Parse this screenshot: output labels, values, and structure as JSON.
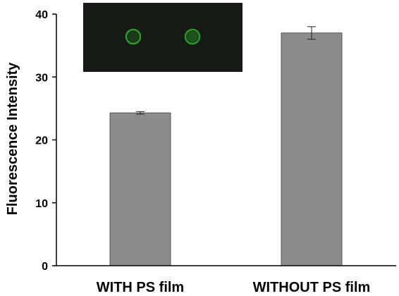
{
  "chart_data": {
    "type": "bar",
    "categories": [
      "WITH PS film",
      "WITHOUT PS film"
    ],
    "values": [
      24.3,
      37.0
    ],
    "errors": [
      0.2,
      1.0
    ],
    "title": "",
    "xlabel": "",
    "ylabel": "Fluorescence Intensity",
    "ylim": [
      0,
      40
    ],
    "yticks": [
      0,
      10,
      20,
      30,
      40
    ],
    "grid": false,
    "bar_color": "#8c8c8c",
    "bar_edge_color": "#555555",
    "inset": {
      "description_icon": "fluorescence-image-inset",
      "background_color": "#151a15",
      "spot_color": "#2a9a2a",
      "spot_count": 2
    }
  }
}
